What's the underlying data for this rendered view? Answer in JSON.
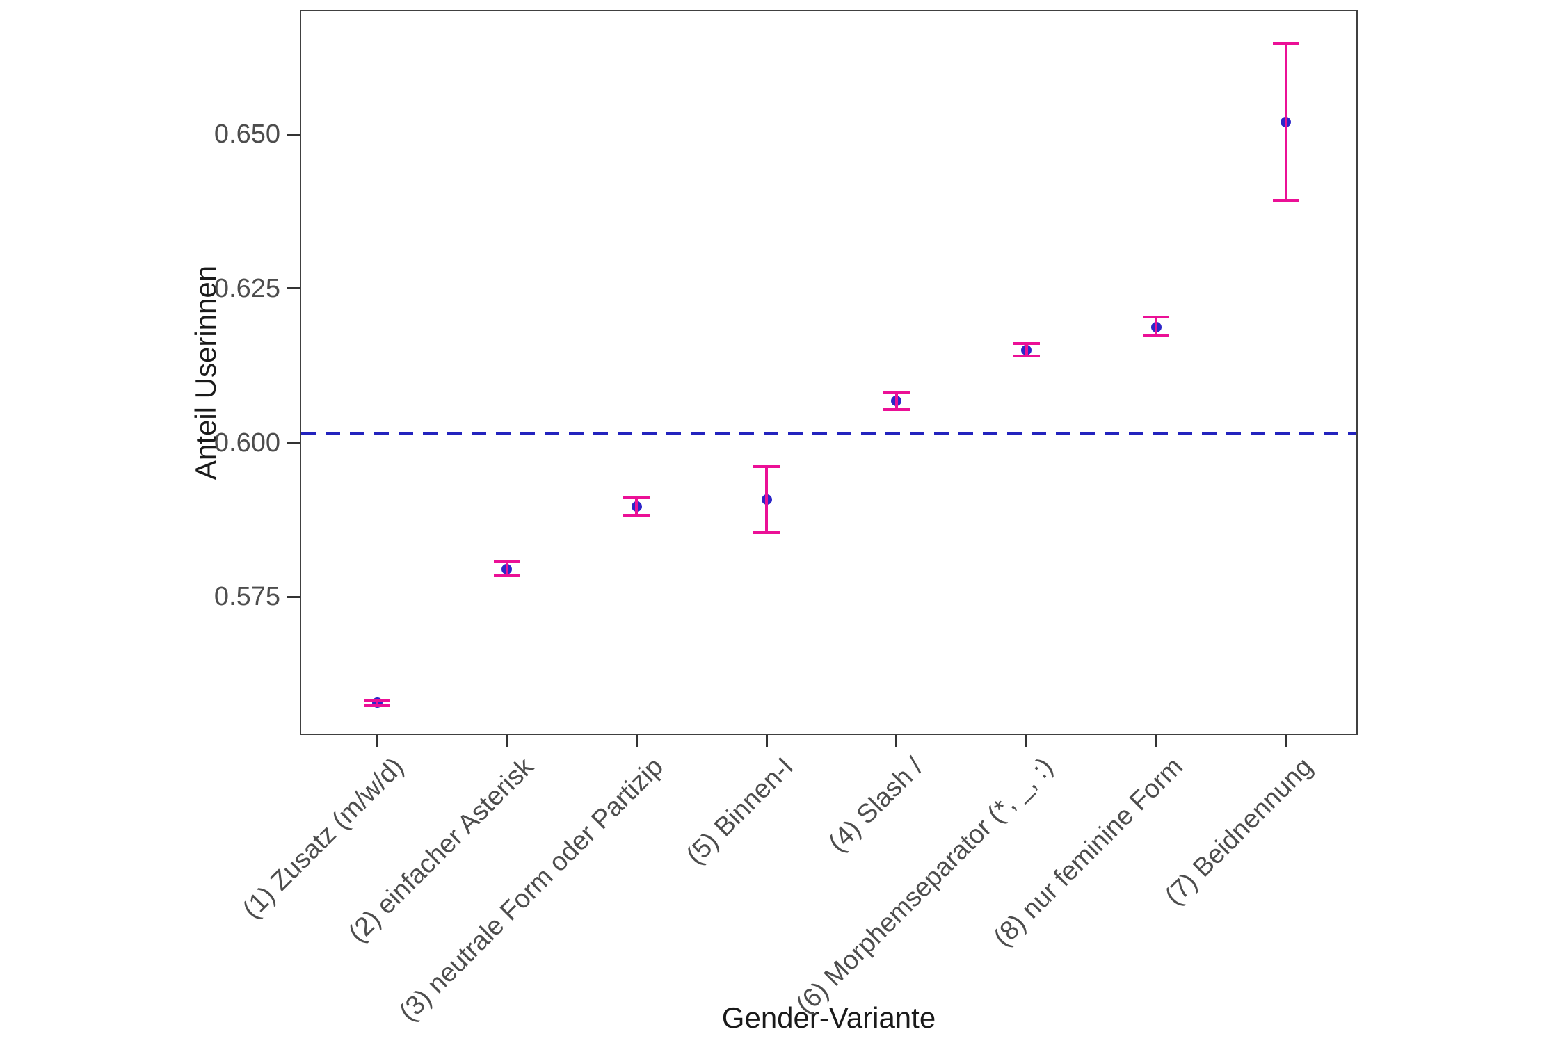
{
  "figure": {
    "xlabel": "Gender-Variante",
    "ylabel": "Anteil Userinnen"
  },
  "chart_data": {
    "type": "scatter",
    "title": "",
    "xlabel": "Gender-Variante",
    "ylabel": "Anteil Userinnen",
    "categories": [
      "(1) Zusatz (m/w/d)",
      "(2) einfacher Asterisk",
      "(3) neutrale Form oder Partizip",
      "(5) Binnen-I",
      "(4) Slash /",
      "(6) Morphemseparator (*, _, :)",
      "(8) nur feminine Form",
      "(7) Beidnennung"
    ],
    "series": [
      {
        "name": "Anteil Userinnen",
        "values": [
          0.5578,
          0.5795,
          0.5896,
          0.5907,
          0.6068,
          0.615,
          0.6187,
          0.652
        ],
        "ci_low": [
          0.5573,
          0.5784,
          0.5882,
          0.5854,
          0.6053,
          0.614,
          0.6173,
          0.6393
        ],
        "ci_high": [
          0.5582,
          0.5807,
          0.5912,
          0.5961,
          0.6081,
          0.6161,
          0.6204,
          0.6647
        ]
      }
    ],
    "reference_line": {
      "value": 0.6014,
      "style": "dashed"
    },
    "yticks": [
      0.575,
      0.6,
      0.625,
      0.65
    ],
    "ytick_labels": [
      "0.575",
      "0.600",
      "0.625",
      "0.650"
    ],
    "ylim": [
      0.553,
      0.67
    ],
    "grid": false,
    "legend": "none",
    "colors": {
      "point": "#2d26c8",
      "errorbar": "#eb1096",
      "reference": "#2323be",
      "axis_text": "#4d4d4d",
      "axis_title": "#1a1a1a",
      "panel_border": "#404040",
      "background": "#ffffff"
    }
  }
}
